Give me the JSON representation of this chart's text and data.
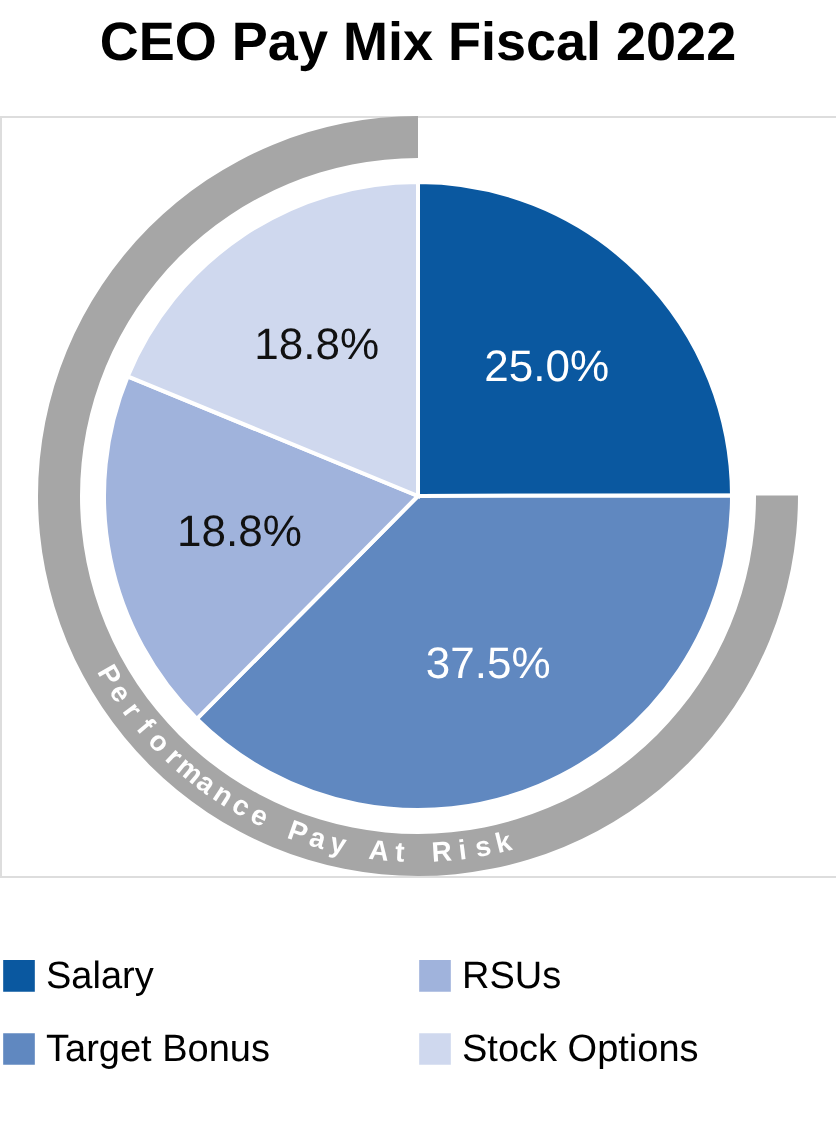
{
  "chart_data": {
    "type": "pie",
    "title": "CEO Pay Mix Fiscal 2022",
    "categories": [
      "Salary",
      "Target Bonus",
      "RSUs",
      "Stock Options"
    ],
    "values": [
      25.0,
      37.5,
      18.8,
      18.8
    ],
    "colors": [
      "#0a58a0",
      "#6088c0",
      "#a0b3dc",
      "#cfd8ee"
    ],
    "value_labels": [
      "25.0%",
      "37.5%",
      "18.8%",
      "18.8%"
    ],
    "annotations": [
      "Performance Pay At Risk"
    ],
    "legend": "bottom"
  }
}
